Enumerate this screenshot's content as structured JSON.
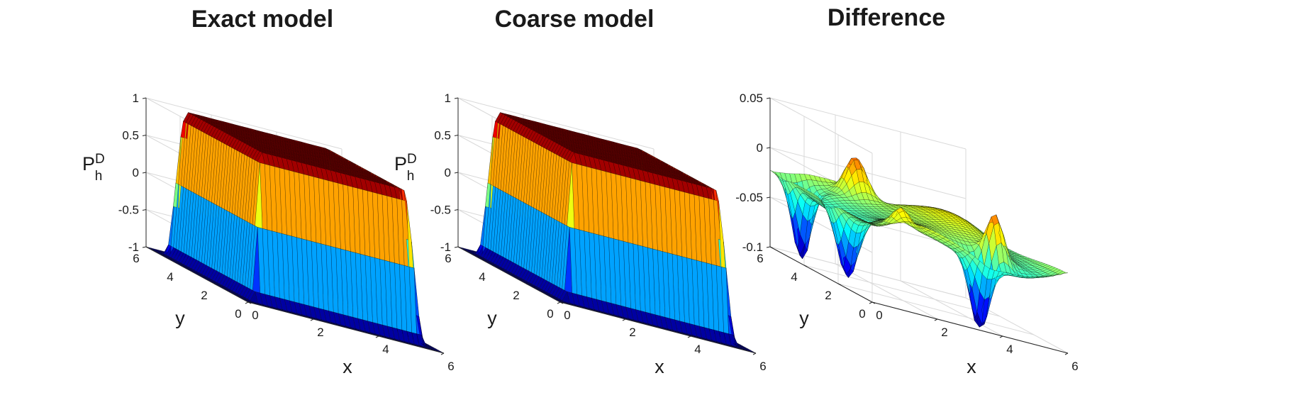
{
  "colors": {
    "colormap": "jet",
    "grid": "#d9d9d9",
    "axis": "#262626",
    "edge": "#000000"
  },
  "chart_data": [
    {
      "type": "surface",
      "title": "Exact model",
      "xlabel": "x",
      "ylabel": "y",
      "zlabel": {
        "main": "P",
        "sub": "h",
        "sup": "D"
      },
      "xlim": [
        0,
        6
      ],
      "ylim": [
        0,
        6
      ],
      "zlim": [
        -1,
        1
      ],
      "xticks": [
        "0",
        "2",
        "4",
        "6"
      ],
      "yticks": [
        "0",
        "2",
        "4",
        "6"
      ],
      "zticks": [
        "-1",
        "-0.5",
        "0",
        "0.5",
        "1"
      ],
      "grid": true,
      "view": "3-D isometric",
      "surface": "box-shaped plateau: value 1 on the interior square (x,y about 0.5 to 5.5), steep walls falling to -1 at the edges, faces banded by level"
    },
    {
      "type": "surface",
      "title": "Coarse model",
      "xlabel": "x",
      "ylabel": "y",
      "zlabel": {
        "main": "P",
        "sub": "h",
        "sup": "D"
      },
      "xlim": [
        0,
        6
      ],
      "ylim": [
        0,
        6
      ],
      "zlim": [
        -1,
        1
      ],
      "xticks": [
        "0",
        "2",
        "4",
        "6"
      ],
      "yticks": [
        "0",
        "2",
        "4",
        "6"
      ],
      "zticks": [
        "-1",
        "-0.5",
        "0",
        "0.5",
        "1"
      ],
      "grid": true,
      "view": "3-D isometric",
      "surface": "nearly identical box-shaped plateau from 1 down to -1"
    },
    {
      "type": "surface",
      "title": "Difference",
      "xlabel": "x",
      "ylabel": "y",
      "zlabel": null,
      "xlim": [
        0,
        6
      ],
      "ylim": [
        0,
        6
      ],
      "zlim": [
        -0.1,
        0.05
      ],
      "xticks": [
        "0",
        "2",
        "4",
        "6"
      ],
      "yticks": [
        "0",
        "2",
        "4",
        "6"
      ],
      "zticks": [
        "-0.1",
        "-0.05",
        "0",
        "0.05"
      ],
      "grid": true,
      "view": "3-D isometric",
      "surface": "mostly flat near -0.02 to 0, with spikes near the square's edges reaching about 0.035 and dips to about -0.1"
    }
  ]
}
